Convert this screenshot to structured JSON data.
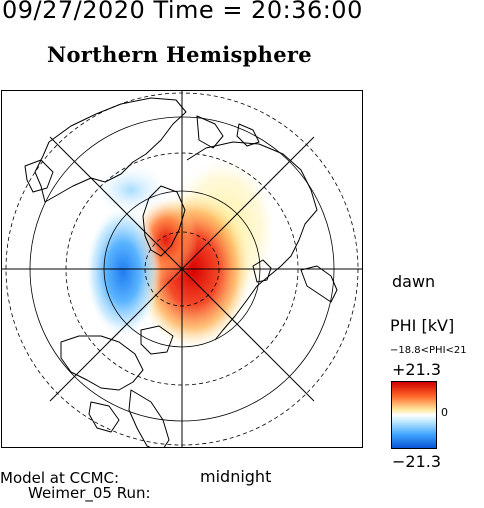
{
  "header": {
    "datetime": "09/27/2020 Time = 20:36:00"
  },
  "title": "Northern Hemisphere",
  "labels": {
    "dawn": "dawn",
    "midnight": "midnight"
  },
  "colorbar": {
    "quantity": "PHI [kV]",
    "range_text": "−18.8<PHI<21",
    "max_label": "+21.3",
    "zero_label": "0",
    "min_label": "−21.3",
    "colors": {
      "max": "#d40000",
      "mid": "#ffffff",
      "min": "#0a55d8"
    }
  },
  "footer": {
    "model_line": "Model at CCMC:",
    "run_line": "Weimer_05  Run:"
  }
}
